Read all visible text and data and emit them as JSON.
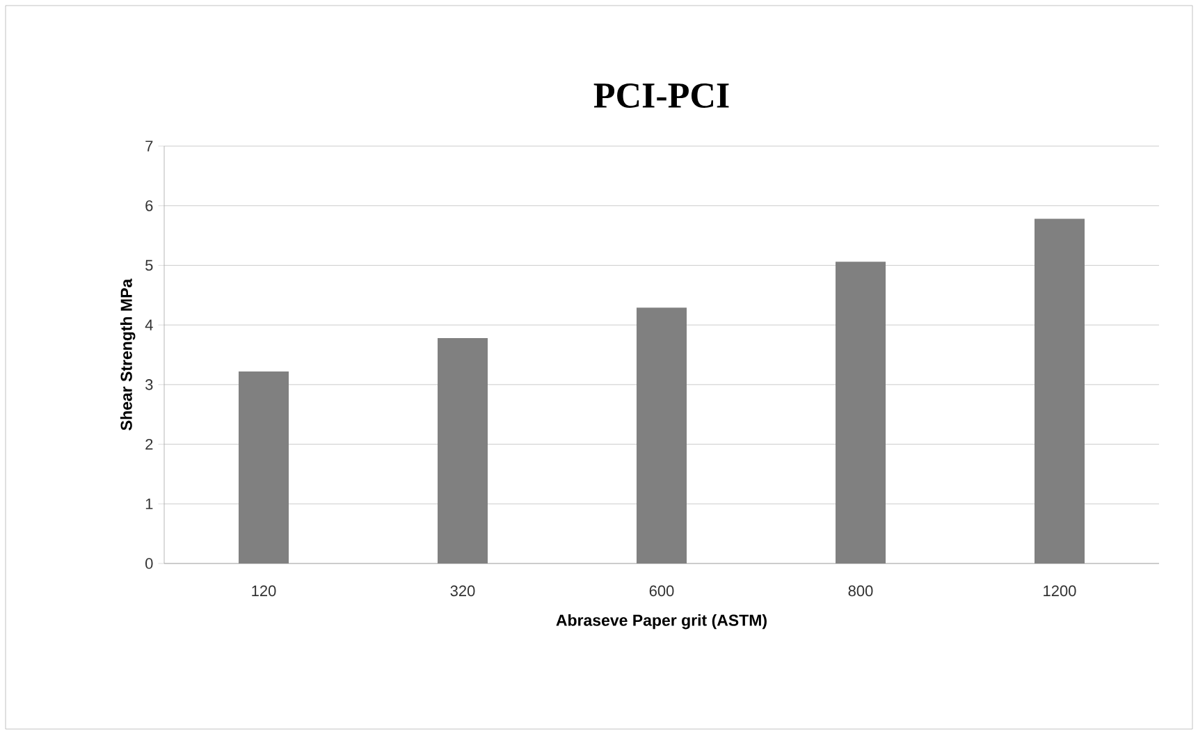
{
  "chart_data": {
    "type": "bar",
    "title": "PCI-PCI",
    "xlabel": "Abraseve Paper grit    (ASTM)",
    "ylabel": "Shear Strength MPa",
    "categories": [
      "120",
      "320",
      "600",
      "800",
      "1200"
    ],
    "values": [
      3.22,
      3.78,
      4.29,
      5.06,
      5.78
    ],
    "color": "#808080",
    "ylim": [
      0,
      7
    ],
    "yticks": [
      0,
      1,
      2,
      3,
      4,
      5,
      6,
      7
    ],
    "grid": "y"
  }
}
